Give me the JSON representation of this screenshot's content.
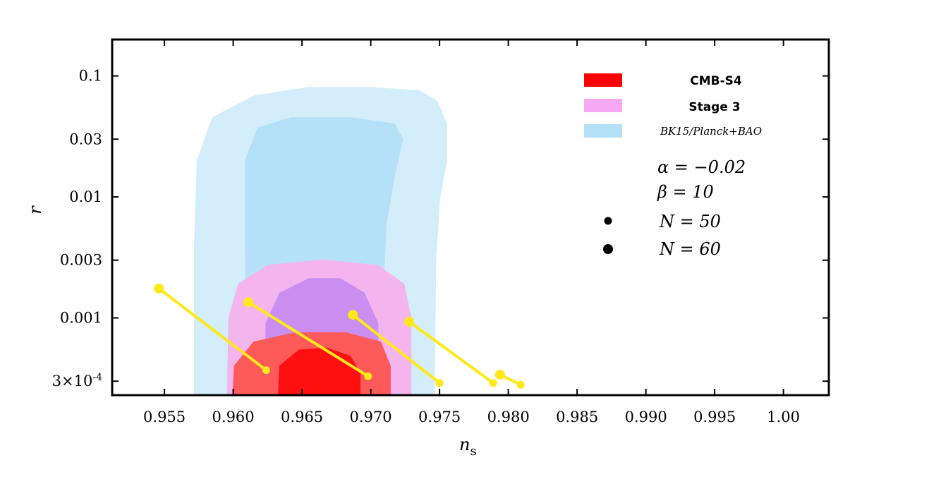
{
  "chart_data": {
    "type": "scatter",
    "xlabel": "n",
    "xlabel_sub": "s",
    "ylabel": "r",
    "xlim": [
      0.9512,
      1.0033
    ],
    "ylim": [
      0.00023,
      0.2
    ],
    "y_scale": "log",
    "x_ticks": [
      {
        "value": 0.955,
        "label": "0.955"
      },
      {
        "value": 0.96,
        "label": "0.960"
      },
      {
        "value": 0.965,
        "label": "0.965"
      },
      {
        "value": 0.97,
        "label": "0.970"
      },
      {
        "value": 0.975,
        "label": "0.975"
      },
      {
        "value": 0.98,
        "label": "0.980"
      },
      {
        "value": 0.985,
        "label": "0.985"
      },
      {
        "value": 0.99,
        "label": "0.990"
      },
      {
        "value": 0.995,
        "label": "0.995"
      },
      {
        "value": 1.0,
        "label": "1.00"
      }
    ],
    "y_ticks": [
      {
        "value": 0.1,
        "label": "0.1"
      },
      {
        "value": 0.03,
        "label": "0.03"
      },
      {
        "value": 0.01,
        "label": "0.01"
      },
      {
        "value": 0.003,
        "label": "0.003"
      },
      {
        "value": 0.001,
        "label": "0.001"
      },
      {
        "value": 0.0003,
        "label": "3×10",
        "sup": "-4"
      }
    ],
    "legend": {
      "placement": "top-right",
      "entries": [
        {
          "label": "CMB-S4",
          "color": "#ff0000",
          "style": "bold"
        },
        {
          "label": "Stage 3",
          "color": "#f7a8f2",
          "style": "bold"
        },
        {
          "label": "BK15/Planck+BAO",
          "color": "#b3e0f7",
          "style": "italic"
        }
      ]
    },
    "annotations": {
      "alpha": "α = −0.02",
      "beta": "β = 10",
      "n50": "N = 50",
      "n60": "N = 60"
    },
    "contours": [
      {
        "name": "BK15/Planck+BAO",
        "level": "95%",
        "color": "#d4edfa",
        "points": [
          [
            0.9572,
            0.00023
          ],
          [
            0.9572,
            0.004
          ],
          [
            0.9574,
            0.02
          ],
          [
            0.9585,
            0.045
          ],
          [
            0.9615,
            0.068
          ],
          [
            0.9655,
            0.08
          ],
          [
            0.97,
            0.08
          ],
          [
            0.9735,
            0.075
          ],
          [
            0.9748,
            0.062
          ],
          [
            0.9755,
            0.04
          ],
          [
            0.9755,
            0.02
          ],
          [
            0.975,
            0.01
          ],
          [
            0.9747,
            0.003
          ],
          [
            0.9746,
            0.00023
          ]
        ]
      },
      {
        "name": "BK15/Planck+BAO",
        "level": "68%",
        "color": "#b4e1f8",
        "points": [
          [
            0.961,
            0.00023
          ],
          [
            0.9609,
            0.005
          ],
          [
            0.9609,
            0.02
          ],
          [
            0.9618,
            0.037
          ],
          [
            0.9642,
            0.045
          ],
          [
            0.9685,
            0.045
          ],
          [
            0.9717,
            0.04
          ],
          [
            0.9723,
            0.03
          ],
          [
            0.9717,
            0.015
          ],
          [
            0.9711,
            0.006
          ],
          [
            0.9705,
            0.00023
          ]
        ]
      },
      {
        "name": "Stage 3",
        "level": "95%",
        "color": "#f4b4ee",
        "points": [
          [
            0.9596,
            0.00023
          ],
          [
            0.9597,
            0.001
          ],
          [
            0.9604,
            0.0019
          ],
          [
            0.9625,
            0.0027
          ],
          [
            0.9665,
            0.003
          ],
          [
            0.9705,
            0.0027
          ],
          [
            0.9724,
            0.0019
          ],
          [
            0.9729,
            0.001
          ],
          [
            0.9729,
            0.00023
          ]
        ]
      },
      {
        "name": "Stage 3",
        "level": "68%",
        "color": "#c98ef0",
        "points": [
          [
            0.9624,
            0.00023
          ],
          [
            0.9624,
            0.0009
          ],
          [
            0.9634,
            0.0016
          ],
          [
            0.9655,
            0.0021
          ],
          [
            0.9678,
            0.0021
          ],
          [
            0.9695,
            0.0016
          ],
          [
            0.9705,
            0.0009
          ],
          [
            0.9705,
            0.00023
          ]
        ]
      },
      {
        "name": "CMB-S4",
        "level": "95%",
        "color": "#ff5a5a",
        "points": [
          [
            0.96,
            0.00023
          ],
          [
            0.9601,
            0.0004
          ],
          [
            0.9615,
            0.00063
          ],
          [
            0.9645,
            0.00075
          ],
          [
            0.9682,
            0.00075
          ],
          [
            0.9707,
            0.00063
          ],
          [
            0.9714,
            0.0004
          ],
          [
            0.9714,
            0.00023
          ]
        ]
      },
      {
        "name": "CMB-S4",
        "level": "68%",
        "color": "#ff1010",
        "points": [
          [
            0.9633,
            0.00023
          ],
          [
            0.9634,
            0.0004
          ],
          [
            0.9648,
            0.00054
          ],
          [
            0.9668,
            0.00056
          ],
          [
            0.9685,
            0.00048
          ],
          [
            0.9692,
            0.00035
          ],
          [
            0.9692,
            0.00023
          ]
        ]
      }
    ],
    "series": [
      {
        "color": "#ffe81a",
        "points": [
          {
            "x": 0.9546,
            "y": 0.00175,
            "N": 60
          },
          {
            "x": 0.9624,
            "y": 0.00037,
            "N": 50
          }
        ]
      },
      {
        "color": "#ffe81a",
        "points": [
          {
            "x": 0.9611,
            "y": 0.00135,
            "N": 60
          },
          {
            "x": 0.9698,
            "y": 0.00033,
            "N": 50
          }
        ]
      },
      {
        "color": "#ffe81a",
        "points": [
          {
            "x": 0.9687,
            "y": 0.00106,
            "N": 60
          },
          {
            "x": 0.975,
            "y": 0.00029,
            "N": 50
          }
        ]
      },
      {
        "color": "#ffe81a",
        "points": [
          {
            "x": 0.9728,
            "y": 0.00093,
            "N": 60
          },
          {
            "x": 0.9789,
            "y": 0.00029,
            "N": 50
          }
        ]
      },
      {
        "color": "#ffe81a",
        "points": [
          {
            "x": 0.9794,
            "y": 0.00034,
            "N": 60
          },
          {
            "x": 0.9809,
            "y": 0.00028,
            "N": 50
          }
        ]
      }
    ]
  }
}
